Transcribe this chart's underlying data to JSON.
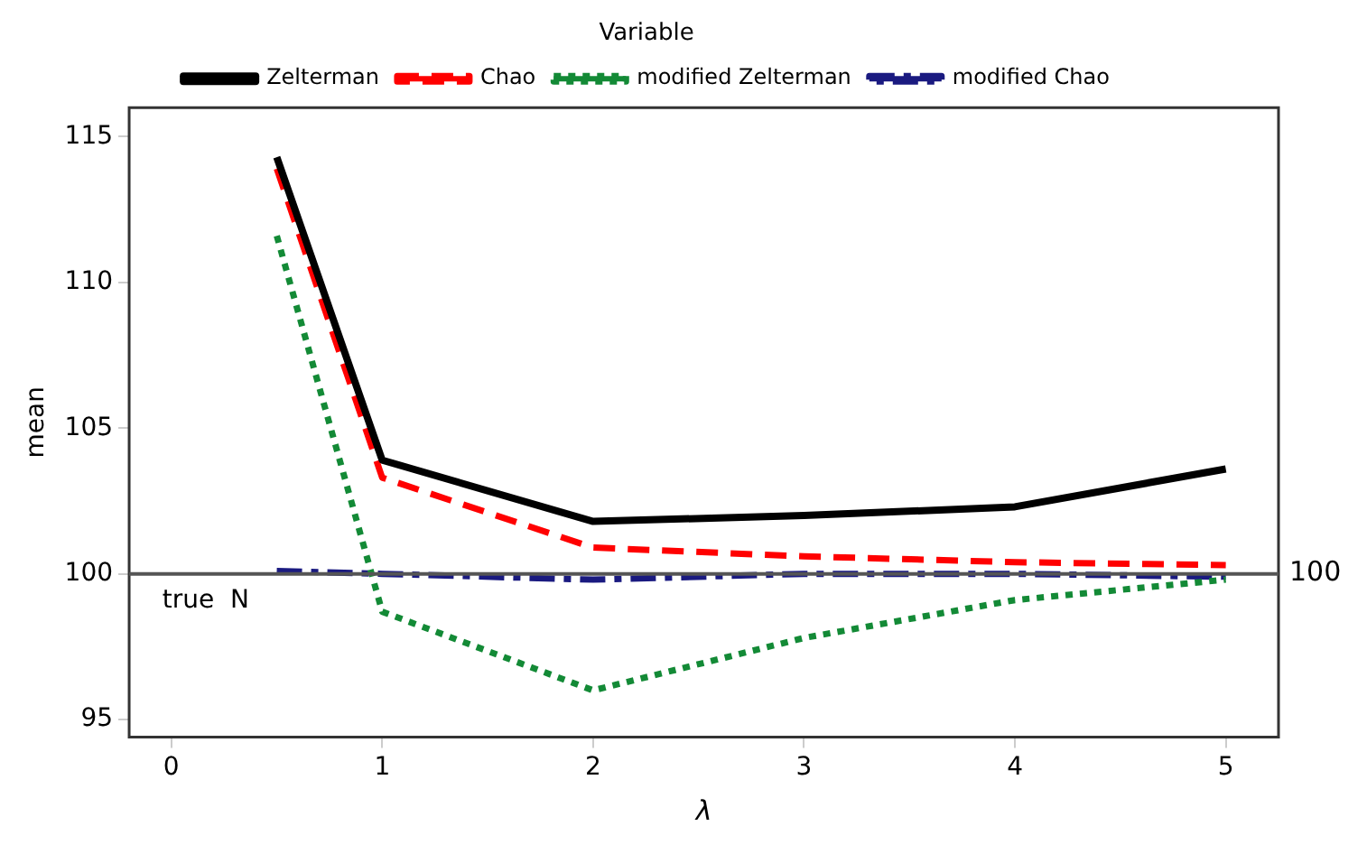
{
  "chart_data": {
    "type": "line",
    "xlabel": "λ",
    "ylabel": "mean",
    "legend_title": "Variable",
    "legend": "top",
    "grid": false,
    "marker": "none",
    "x": [
      0.5,
      1,
      2,
      3,
      4,
      5
    ],
    "xlim": [
      -0.2,
      5.25
    ],
    "xticks": [
      0,
      1,
      2,
      3,
      4,
      5
    ],
    "ylim": [
      94.4,
      116
    ],
    "yticks": [
      95,
      100,
      105,
      110,
      115
    ],
    "series": [
      {
        "name": "Zelterman",
        "color": "#000000",
        "line_style": "solid",
        "values": [
          114.3,
          103.9,
          101.8,
          102.0,
          102.3,
          103.6
        ]
      },
      {
        "name": "Chao",
        "color": "#ff0000",
        "line_style": "dashed",
        "values": [
          113.9,
          103.3,
          100.9,
          100.6,
          100.4,
          100.3
        ]
      },
      {
        "name": "modified Zelterman",
        "color": "#138a36",
        "line_style": "dotted",
        "values": [
          111.6,
          98.7,
          96.0,
          97.8,
          99.1,
          99.8
        ]
      },
      {
        "name": "modified Chao",
        "color": "#1a1a80",
        "line_style": "dashdot",
        "values": [
          100.1,
          100.0,
          99.8,
          100.0,
          100.0,
          99.9
        ]
      }
    ],
    "ref_lines": [
      {
        "axis": "y",
        "value": 100,
        "label": "100",
        "color": "#555555"
      }
    ],
    "annotations": [
      {
        "text": "true  N",
        "x": 0,
        "y": 100
      }
    ]
  }
}
